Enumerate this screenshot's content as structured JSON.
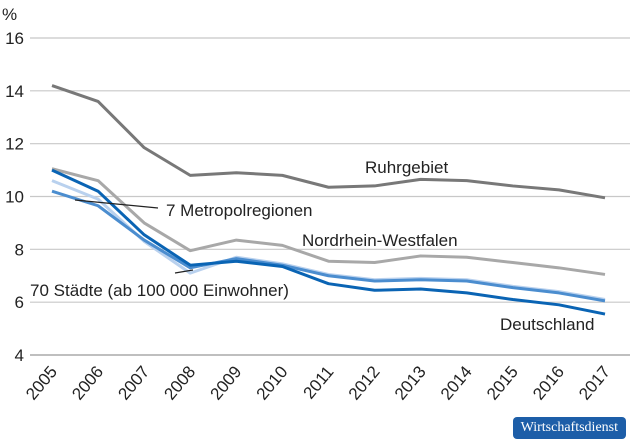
{
  "chart_data": {
    "type": "line",
    "ylabel": "%",
    "ylim": [
      4,
      16
    ],
    "yticks": [
      4,
      6,
      8,
      10,
      12,
      14,
      16
    ],
    "x": [
      "2005",
      "2006",
      "2007",
      "2008",
      "2009",
      "2010",
      "2011",
      "2012",
      "2013",
      "2014",
      "2015",
      "2016",
      "2017"
    ],
    "grid": true,
    "series": [
      {
        "name": "Ruhrgebiet",
        "color": "#787878",
        "values": [
          14.2,
          13.6,
          11.85,
          10.8,
          10.9,
          10.8,
          10.35,
          10.4,
          10.65,
          10.6,
          10.4,
          10.25,
          9.95
        ]
      },
      {
        "name": "Nordrhein-Westfalen",
        "color": "#a8a8a8",
        "values": [
          11.05,
          10.6,
          9.0,
          7.95,
          8.35,
          8.15,
          7.55,
          7.5,
          7.75,
          7.7,
          7.5,
          7.3,
          7.05
        ]
      },
      {
        "name": "70 Städte (ab 100 000 Einwohner)",
        "color": "#b9d1ee",
        "values": [
          10.6,
          9.9,
          8.3,
          7.1,
          7.7,
          7.45,
          7.05,
          6.85,
          6.9,
          6.85,
          6.6,
          6.4,
          6.1
        ]
      },
      {
        "name": "7 Metropolregionen",
        "color": "#4b8dcf",
        "values": [
          10.2,
          9.65,
          8.35,
          7.3,
          7.65,
          7.4,
          7.0,
          6.8,
          6.85,
          6.8,
          6.55,
          6.35,
          6.05
        ]
      },
      {
        "name": "Deutschland",
        "color": "#0a64b4",
        "values": [
          11.0,
          10.2,
          8.55,
          7.4,
          7.55,
          7.35,
          6.7,
          6.45,
          6.5,
          6.35,
          6.1,
          5.9,
          5.55
        ]
      }
    ]
  },
  "logo": "Wirtschaftsdienst"
}
